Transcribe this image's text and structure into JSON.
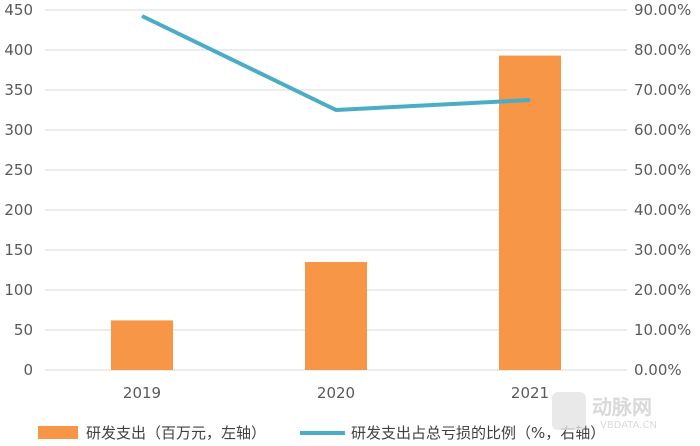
{
  "chart_data": {
    "type": "bar",
    "categories": [
      "2019",
      "2020",
      "2021"
    ],
    "series": [
      {
        "name": "研发支出（百万元，左轴）",
        "type": "bar",
        "axis": "left",
        "values": [
          62,
          135,
          393
        ]
      },
      {
        "name": "研发支出占总亏损的比例（%，右轴）",
        "type": "line",
        "axis": "right",
        "values": [
          88.5,
          65,
          67.5
        ]
      }
    ],
    "left_axis": {
      "min": 0,
      "max": 450,
      "step": 50,
      "ticks": [
        "0",
        "50",
        "100",
        "150",
        "200",
        "250",
        "300",
        "350",
        "400",
        "450"
      ]
    },
    "right_axis": {
      "min": 0,
      "max": 90,
      "step": 10,
      "ticks": [
        "0.00%",
        "10.00%",
        "20.00%",
        "30.00%",
        "40.00%",
        "50.00%",
        "60.00%",
        "70.00%",
        "80.00%",
        "90.00%"
      ]
    },
    "grid": true,
    "legend_position": "bottom",
    "colors": {
      "bar": "#F79646",
      "line": "#4BACC6",
      "grid": "#D9D9D9",
      "text": "#595959"
    }
  },
  "watermark": {
    "main": "动脉网",
    "sub": "VBDATA.CN"
  }
}
